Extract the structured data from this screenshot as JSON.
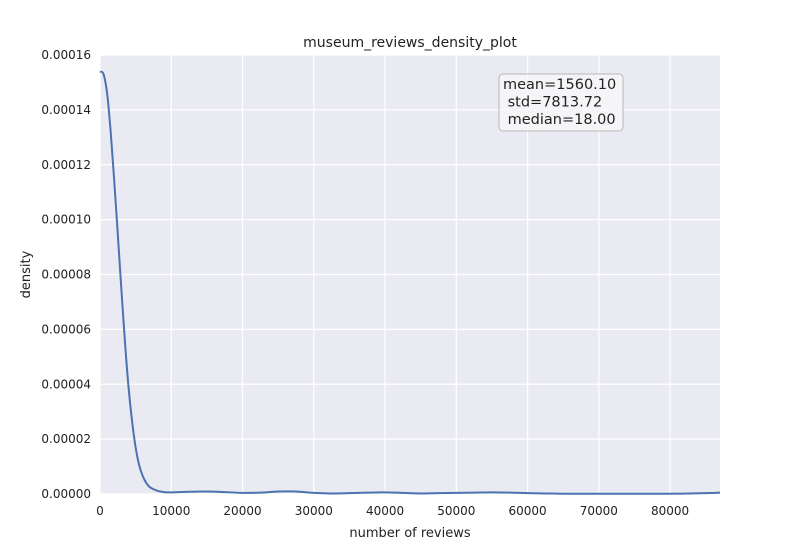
{
  "chart_data": {
    "type": "line",
    "title": "museum_reviews_density_plot",
    "xlabel": "number of reviews",
    "ylabel": "density",
    "xlim": [
      0,
      87000
    ],
    "ylim": [
      0,
      0.00016
    ],
    "grid": true,
    "x_ticks": [
      {
        "value": 0,
        "label": "0"
      },
      {
        "value": 10000,
        "label": "10000"
      },
      {
        "value": 20000,
        "label": "20000"
      },
      {
        "value": 30000,
        "label": "30000"
      },
      {
        "value": 40000,
        "label": "40000"
      },
      {
        "value": 50000,
        "label": "50000"
      },
      {
        "value": 60000,
        "label": "60000"
      },
      {
        "value": 70000,
        "label": "70000"
      },
      {
        "value": 80000,
        "label": "80000"
      }
    ],
    "y_ticks": [
      {
        "value": 0,
        "label": "0.00000"
      },
      {
        "value": 2e-05,
        "label": "0.00002"
      },
      {
        "value": 4e-05,
        "label": "0.00004"
      },
      {
        "value": 6e-05,
        "label": "0.00006"
      },
      {
        "value": 8e-05,
        "label": "0.00008"
      },
      {
        "value": 0.0001,
        "label": "0.00010"
      },
      {
        "value": 0.00012,
        "label": "0.00012"
      },
      {
        "value": 0.00014,
        "label": "0.00014"
      },
      {
        "value": 0.00016,
        "label": "0.00016"
      }
    ],
    "series": [
      {
        "color": "#4c72b0",
        "x": [
          0,
          500,
          1000,
          1500,
          2000,
          2500,
          3000,
          3500,
          4000,
          4500,
          5000,
          5500,
          6000,
          6500,
          7000,
          8000,
          9000,
          10000,
          11000,
          12500,
          15000,
          17500,
          20000,
          22500,
          25000,
          27500,
          30000,
          32500,
          35000,
          37500,
          40000,
          42500,
          45000,
          47500,
          50000,
          52500,
          55000,
          57500,
          60000,
          62500,
          65000,
          70000,
          75000,
          80000,
          85000,
          87000
        ],
        "y": [
          0.000154,
          0.000153,
          0.000146,
          0.000132,
          0.000114,
          9.45e-05,
          7.45e-05,
          5.55e-05,
          3.9e-05,
          2.65e-05,
          1.7e-05,
          1.05e-05,
          6.5e-06,
          4e-06,
          2.5e-06,
          1.2e-06,
          7e-07,
          6e-07,
          7e-07,
          8e-07,
          9e-07,
          7e-07,
          4e-07,
          5e-07,
          9e-07,
          9e-07,
          4e-07,
          2e-07,
          3e-07,
          5e-07,
          6e-07,
          4e-07,
          2e-07,
          3e-07,
          4e-07,
          5e-07,
          6e-07,
          5e-07,
          3e-07,
          2e-07,
          1e-07,
          1e-07,
          1e-07,
          1e-07,
          3e-07,
          5e-07
        ]
      }
    ],
    "annotation": {
      "lines": [
        "mean=1560.10",
        " std=7813.72",
        " median=18.00"
      ],
      "placement": "top-right"
    },
    "colors": {
      "plot_background": "#eaeaf2",
      "grid": "#ffffff",
      "line": "#4c72b0"
    }
  }
}
